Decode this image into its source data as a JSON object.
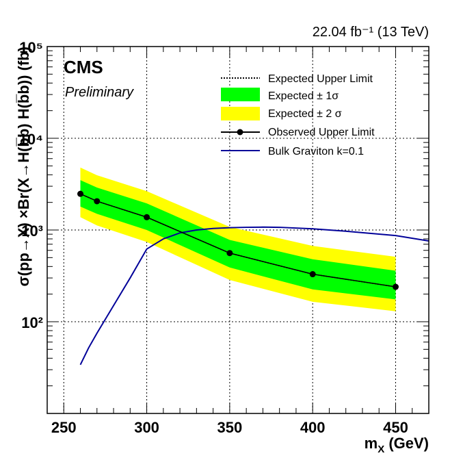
{
  "chart_data": {
    "type": "line",
    "lumi_label": "22.04 fb⁻¹ (13 TeV)",
    "experiment": "CMS",
    "status": "Preliminary",
    "xlabel": "m_X (GeV)",
    "ylabel": "σ(pp→X) ×Br(X→H(b̅b) H(b̅b)) (fb)",
    "xlim": [
      240,
      470
    ],
    "ylim": [
      10,
      100000
    ],
    "y_scale": "log",
    "x_ticks": [
      250,
      300,
      350,
      400,
      450
    ],
    "x_tick_labels": [
      "250",
      "300",
      "350",
      "400",
      "450"
    ],
    "y_ticks": [
      100,
      1000,
      10000,
      100000
    ],
    "y_tick_labels": [
      "10²",
      "10³",
      "10⁴",
      "10⁵"
    ],
    "grid": true,
    "legend_position": "top-right",
    "legend": [
      {
        "label": "Expected Upper Limit",
        "style": "dotted"
      },
      {
        "label": "Expected ± 1σ",
        "color": "#00ff00"
      },
      {
        "label": "Expected ± 2 σ",
        "color": "#ffff00"
      },
      {
        "label": "Observed Upper Limit",
        "style": "line-marker"
      },
      {
        "label": "Bulk Graviton k=0.1",
        "color": "#000099"
      }
    ],
    "x": [
      260,
      270,
      300,
      350,
      400,
      450
    ],
    "observed": [
      2480,
      2060,
      1380,
      560,
      330,
      240
    ],
    "expected": [
      2480,
      2060,
      1380,
      560,
      330,
      240
    ],
    "band_1sigma_low": [
      1800,
      1500,
      1000,
      390,
      225,
      175
    ],
    "band_1sigma_high": [
      3500,
      2900,
      1950,
      780,
      480,
      360
    ],
    "band_2sigma_low": [
      1380,
      1120,
      740,
      285,
      165,
      130
    ],
    "band_2sigma_high": [
      4800,
      3950,
      2650,
      1080,
      670,
      510
    ],
    "theory": {
      "name": "Bulk Graviton k=0.1",
      "x": [
        260,
        265,
        270,
        280,
        290,
        300,
        310,
        320,
        330,
        340,
        350,
        360,
        370,
        380,
        400,
        420,
        450,
        470
      ],
      "y": [
        34,
        52,
        75,
        150,
        300,
        620,
        800,
        930,
        1000,
        1040,
        1060,
        1070,
        1075,
        1070,
        1030,
        970,
        870,
        760
      ]
    },
    "colors": {
      "band_1sigma": "#00ff00",
      "band_2sigma": "#ffff00",
      "theory": "#000099",
      "observed": "#000000"
    }
  }
}
